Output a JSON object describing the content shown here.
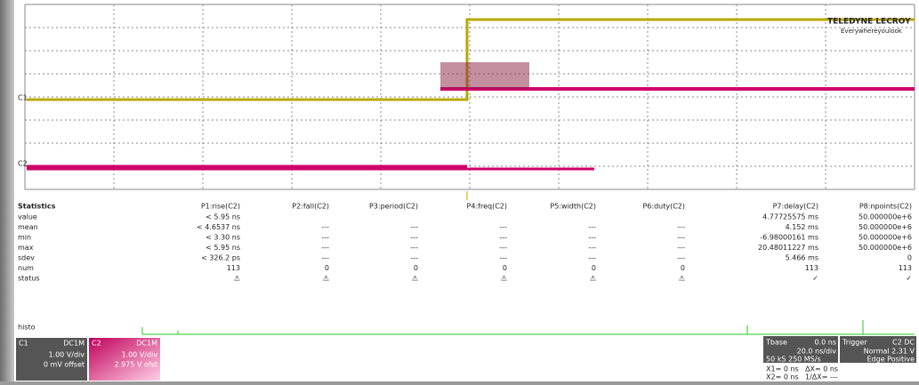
{
  "logo": {
    "brand": "TELEDYNE LECROY",
    "tagline": "Everywhereyoulook"
  },
  "trace_labels": [
    "C1",
    "C2"
  ],
  "measurements": {
    "headers": [
      "Statistics",
      "P1:rise(C2)",
      "P2:fall(C2)",
      "P3:period(C2)",
      "P4:freq(C2)",
      "P5:width(C2)",
      "P6:duty(C2)",
      "P7:delay(C2)",
      "P8:npoints(C2)"
    ],
    "rows": [
      {
        "label": "value",
        "cells": [
          "< 5.95 ns",
          null,
          null,
          null,
          null,
          null,
          "4.77725575 ms",
          "50.000000e+6"
        ]
      },
      {
        "label": "mean",
        "cells": [
          "< 4.6537 ns",
          "---",
          "---",
          "---",
          "---",
          "---",
          "4.152 ms",
          "50.000000e+6"
        ]
      },
      {
        "label": "min",
        "cells": [
          "< 3.30 ns",
          "---",
          "---",
          "---",
          "---",
          "---",
          "-6.98000161 ms",
          "50.000000e+6"
        ]
      },
      {
        "label": "max",
        "cells": [
          "< 5.95 ns",
          "---",
          "---",
          "---",
          "---",
          "---",
          "20.48011227 ms",
          "50.000000e+6"
        ]
      },
      {
        "label": "sdev",
        "cells": [
          "< 326.2 ps",
          "---",
          "---",
          "---",
          "---",
          "---",
          "5.466 ms",
          "0"
        ]
      },
      {
        "label": "num",
        "cells": [
          "113",
          "0",
          "0",
          "0",
          "0",
          "0",
          "113",
          "113"
        ]
      },
      {
        "label": "status",
        "cells": [
          "⚠",
          "⚠",
          "⚠",
          "⚠",
          "⚠",
          "⚠",
          "✓",
          "✓"
        ]
      }
    ]
  },
  "histo_label": "histo",
  "channels": [
    {
      "name": "C1",
      "coupling": "DC1M",
      "scale": "1.00 V/div",
      "offset": "0 mV offset"
    },
    {
      "name": "C2",
      "coupling": "DC1M",
      "scale": "1.00 V/div",
      "offset": "2.975 V ofst"
    }
  ],
  "timebase": {
    "title": "Tbase",
    "delay": "0.0 ns",
    "per_div": "20.0 ns/div",
    "rate": "50 kS  250 MS/s"
  },
  "trigger": {
    "title": "Trigger",
    "source": "C2 DC",
    "mode": "Normal  2.31 V",
    "type": "Edge  Positive"
  },
  "cursors": {
    "x1": "X1= 0 ns",
    "dx": "ΔX= 0 ns",
    "x2": "X2= 0 ns",
    "inv_dx": "1/ΔX= ---"
  }
}
